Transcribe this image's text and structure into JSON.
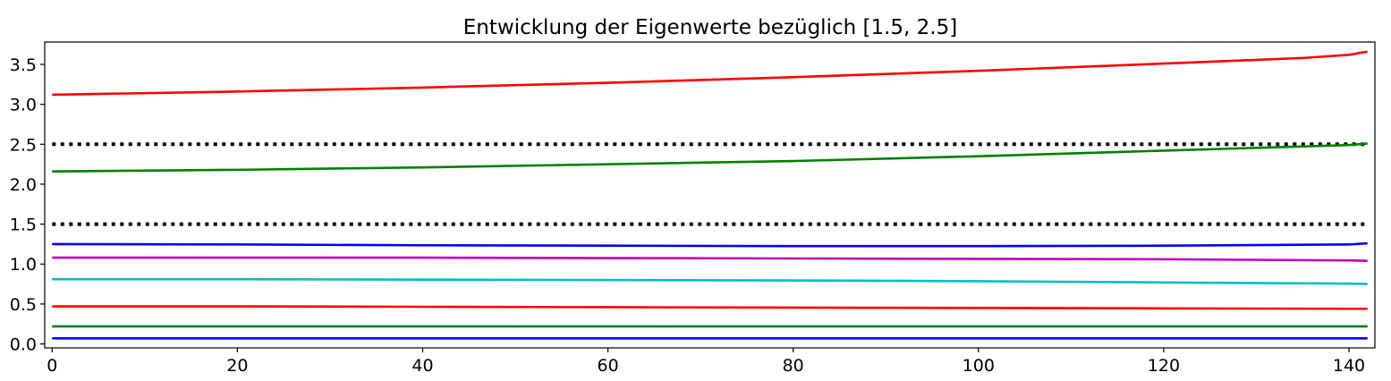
{
  "chart_data": {
    "type": "line",
    "title": "Entwicklung der Eigenwerte bezüglich [1.5, 2.5]",
    "xlabel": "",
    "ylabel": "",
    "xlim": [
      -0.8,
      142.8
    ],
    "ylim": [
      -0.05,
      3.78
    ],
    "x_ticks": [
      0,
      20,
      40,
      60,
      80,
      100,
      120,
      140
    ],
    "y_ticks": [
      0.0,
      0.5,
      1.0,
      1.5,
      2.0,
      2.5,
      3.0,
      3.5
    ],
    "x_tick_labels": [
      "0",
      "20",
      "40",
      "60",
      "80",
      "100",
      "120",
      "140"
    ],
    "y_tick_labels": [
      "0.0",
      "0.5",
      "1.0",
      "1.5",
      "2.0",
      "2.5",
      "3.0",
      "3.5"
    ],
    "grid": false,
    "legend": "none",
    "reference_lines": [
      {
        "y": 2.5,
        "style": "dotted",
        "color": "#000000"
      },
      {
        "y": 1.5,
        "style": "dotted",
        "color": "#000000"
      }
    ],
    "series": [
      {
        "color": "#ff0000",
        "x": [
          0,
          20,
          40,
          60,
          80,
          100,
          120,
          135,
          140,
          142
        ],
        "y": [
          3.12,
          3.16,
          3.21,
          3.27,
          3.34,
          3.42,
          3.51,
          3.58,
          3.62,
          3.66
        ]
      },
      {
        "color": "#008000",
        "x": [
          0,
          20,
          40,
          60,
          80,
          100,
          120,
          140,
          142
        ],
        "y": [
          2.16,
          2.18,
          2.21,
          2.25,
          2.29,
          2.35,
          2.42,
          2.49,
          2.51
        ]
      },
      {
        "color": "#0000ff",
        "x": [
          0,
          20,
          40,
          60,
          80,
          100,
          120,
          140,
          142
        ],
        "y": [
          1.25,
          1.245,
          1.235,
          1.23,
          1.225,
          1.225,
          1.23,
          1.245,
          1.26
        ]
      },
      {
        "color": "#bf00bf",
        "x": [
          0,
          20,
          40,
          60,
          80,
          100,
          120,
          140,
          142
        ],
        "y": [
          1.08,
          1.08,
          1.08,
          1.075,
          1.07,
          1.065,
          1.06,
          1.045,
          1.04
        ]
      },
      {
        "color": "#00bfbf",
        "x": [
          0,
          20,
          40,
          60,
          80,
          100,
          120,
          140,
          142
        ],
        "y": [
          0.81,
          0.81,
          0.805,
          0.8,
          0.795,
          0.785,
          0.77,
          0.755,
          0.75
        ]
      },
      {
        "color": "#ff0000",
        "x": [
          0,
          20,
          40,
          60,
          80,
          100,
          120,
          140,
          142
        ],
        "y": [
          0.47,
          0.47,
          0.465,
          0.46,
          0.455,
          0.45,
          0.445,
          0.44,
          0.44
        ]
      },
      {
        "color": "#008000",
        "x": [
          0,
          20,
          40,
          60,
          80,
          100,
          120,
          140,
          142
        ],
        "y": [
          0.22,
          0.22,
          0.22,
          0.22,
          0.22,
          0.22,
          0.22,
          0.22,
          0.22
        ]
      },
      {
        "color": "#0000ff",
        "x": [
          0,
          20,
          40,
          60,
          80,
          100,
          120,
          140,
          142
        ],
        "y": [
          0.07,
          0.07,
          0.07,
          0.07,
          0.07,
          0.07,
          0.07,
          0.07,
          0.07
        ]
      }
    ]
  }
}
